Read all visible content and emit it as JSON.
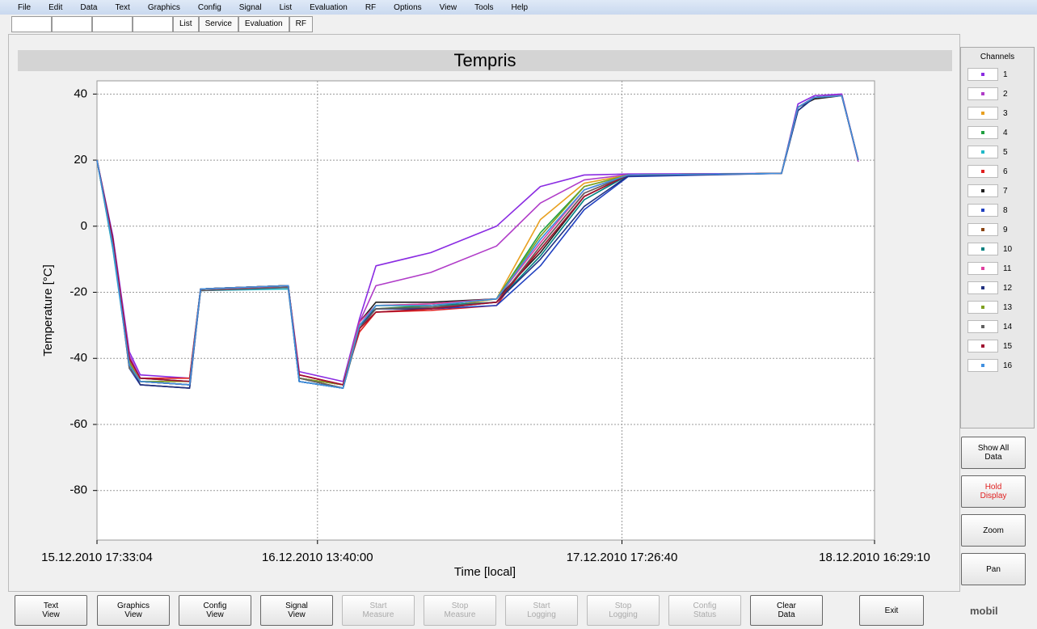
{
  "menu": [
    "File",
    "Edit",
    "Data",
    "Text",
    "Graphics",
    "Config",
    "Signal",
    "List",
    "Evaluation",
    "RF",
    "Options",
    "View",
    "Tools",
    "Help"
  ],
  "tabs": [
    "List",
    "Service",
    "Evaluation",
    "RF"
  ],
  "channels_title": "Channels",
  "side_buttons": [
    {
      "label": "Show All\nData",
      "warn": false
    },
    {
      "label": "Hold\nDisplay",
      "warn": true
    },
    {
      "label": "Zoom",
      "warn": false
    },
    {
      "label": "Pan",
      "warn": false
    }
  ],
  "bottom_buttons": [
    {
      "label": "Text\nView",
      "disabled": false
    },
    {
      "label": "Graphics\nView",
      "disabled": false
    },
    {
      "label": "Config\nView",
      "disabled": false
    },
    {
      "label": "Signal\nView",
      "disabled": false
    },
    {
      "label": "Start\nMeasure",
      "disabled": true
    },
    {
      "label": "Stop\nMeasure",
      "disabled": true
    },
    {
      "label": "Start\nLogging",
      "disabled": true
    },
    {
      "label": "Stop\nLogging",
      "disabled": true
    },
    {
      "label": "Config\nStatus",
      "disabled": true
    },
    {
      "label": "Clear\nData",
      "disabled": false
    },
    {
      "label": "Exit",
      "disabled": false
    }
  ],
  "logo": "mobil",
  "chart_data": {
    "type": "line",
    "title": "Tempris",
    "xlabel": "Time [local]",
    "ylabel": "Temperature [°C]",
    "xlim": [
      "15.12.2010 17:33:04",
      "18.12.2010 16:29:10"
    ],
    "xticks": [
      "15.12.2010 17:33:04",
      "16.12.2010 13:40:00",
      "17.12.2010 17:26:40",
      "18.12.2010 16:29:10"
    ],
    "ylim": [
      -95,
      44
    ],
    "yticks": [
      40,
      20,
      0,
      -20,
      -40,
      -60,
      -80
    ],
    "grid": true,
    "x": [
      "15.12.2010 17:33",
      "15.12.2010 19:00",
      "15.12.2010 20:30",
      "15.12.2010 21:30",
      "16.12.2010 02:00",
      "16.12.2010 03:00",
      "16.12.2010 11:00",
      "16.12.2010 12:00",
      "16.12.2010 16:00",
      "16.12.2010 17:30",
      "16.12.2010 19:00",
      "17.12.2010 00:00",
      "17.12.2010 06:00",
      "17.12.2010 10:00",
      "17.12.2010 14:00",
      "17.12.2010 18:00",
      "18.12.2010 08:00",
      "18.12.2010 09:30",
      "18.12.2010 11:00",
      "18.12.2010 13:30",
      "18.12.2010 15:00"
    ],
    "series": [
      {
        "name": "1",
        "color": "#8a2be2",
        "values": [
          20,
          -3,
          -38,
          -45,
          -46,
          -19,
          -18,
          -44,
          -47,
          -28,
          -12,
          -8,
          0,
          12,
          15.5,
          15.8,
          16,
          37,
          39.5,
          40,
          20
        ]
      },
      {
        "name": "2",
        "color": "#b03cc8",
        "values": [
          20,
          -4,
          -39,
          -46,
          -47,
          -19,
          -18,
          -45,
          -48,
          -29,
          -18,
          -14,
          -6,
          7,
          14,
          15.6,
          16,
          36,
          39,
          39.8,
          19.5
        ]
      },
      {
        "name": "3",
        "color": "#e8a020",
        "values": [
          20,
          -6,
          -41,
          -48,
          -49,
          -19,
          -18,
          -46,
          -49,
          -31,
          -26,
          -25,
          -22,
          2,
          13,
          15.5,
          16,
          36,
          39,
          39.5,
          20
        ]
      },
      {
        "name": "4",
        "color": "#20a040",
        "values": [
          20,
          -5,
          -40,
          -47,
          -48,
          -19,
          -18.5,
          -46,
          -48,
          -30,
          -25,
          -24,
          -22,
          -2,
          12,
          15.5,
          16,
          35,
          39,
          39.5,
          20
        ]
      },
      {
        "name": "5",
        "color": "#20b8c8",
        "values": [
          20,
          -7,
          -42,
          -47,
          -48,
          -19.5,
          -19,
          -47,
          -49,
          -31,
          -24,
          -23.5,
          -22,
          -4,
          11,
          15.5,
          16,
          36,
          39,
          39.5,
          20
        ]
      },
      {
        "name": "6",
        "color": "#e02020",
        "values": [
          20,
          -5,
          -41,
          -46,
          -46,
          -19,
          -18,
          -45,
          -48,
          -32,
          -26,
          -25.5,
          -24,
          -6,
          10,
          15.5,
          16,
          36,
          39,
          39.5,
          20
        ]
      },
      {
        "name": "7",
        "color": "#202020",
        "values": [
          20,
          -6,
          -40,
          -47,
          -48,
          -19,
          -18,
          -46,
          -49,
          -29,
          -23,
          -23,
          -22,
          -8,
          9,
          15.5,
          16,
          36,
          38.5,
          39.5,
          20
        ]
      },
      {
        "name": "8",
        "color": "#2040c0",
        "values": [
          20,
          -4,
          -43,
          -48,
          -49,
          -19.5,
          -18.5,
          -47,
          -49,
          -30,
          -25,
          -25,
          -24,
          -12,
          5,
          15,
          16,
          35,
          39,
          39.5,
          20
        ]
      },
      {
        "name": "9",
        "color": "#8b4513",
        "values": [
          20,
          -5,
          -42,
          -47,
          -48,
          -19,
          -18,
          -46,
          -48,
          -30,
          -25,
          -24.5,
          -23,
          -7,
          9,
          15.5,
          16,
          36,
          39,
          39.5,
          20
        ]
      },
      {
        "name": "10",
        "color": "#008080",
        "values": [
          20,
          -6,
          -41,
          -46,
          -47,
          -19,
          -18,
          -47,
          -49,
          -31,
          -24,
          -24,
          -23,
          -9,
          8,
          15.4,
          16,
          36,
          39,
          39.5,
          20
        ]
      },
      {
        "name": "11",
        "color": "#e040a0",
        "values": [
          20,
          -5,
          -40,
          -47,
          -48,
          -19,
          -18.5,
          -46,
          -48,
          -29,
          -24,
          -23.5,
          -22,
          -5,
          11,
          15.5,
          16,
          36,
          39,
          39.5,
          20
        ]
      },
      {
        "name": "12",
        "color": "#203080",
        "values": [
          20,
          -4,
          -42,
          -48,
          -49,
          -19,
          -18,
          -47,
          -49,
          -30,
          -25,
          -25,
          -23,
          -10,
          6,
          15.2,
          16,
          35,
          39,
          39.5,
          20
        ]
      },
      {
        "name": "13",
        "color": "#80a020",
        "values": [
          20,
          -6,
          -41,
          -47,
          -47,
          -19,
          -18,
          -46,
          -48,
          -30,
          -24,
          -24,
          -22,
          -3,
          12,
          15.5,
          16,
          36,
          39,
          39.5,
          20
        ]
      },
      {
        "name": "14",
        "color": "#606060",
        "values": [
          20,
          -5,
          -43,
          -47,
          -48,
          -19.5,
          -18.5,
          -46,
          -49,
          -31,
          -25,
          -24.5,
          -23,
          -6,
          10,
          15.5,
          16,
          36,
          39,
          39.5,
          20
        ]
      },
      {
        "name": "15",
        "color": "#a01030",
        "values": [
          20,
          -4,
          -40,
          -46,
          -47,
          -19,
          -18,
          -45,
          -48,
          -31,
          -26,
          -25,
          -23,
          -7,
          9,
          15.5,
          16,
          36,
          39,
          39.5,
          20
        ]
      },
      {
        "name": "16",
        "color": "#4090e0",
        "values": [
          20,
          -6,
          -42,
          -47,
          -48,
          -19,
          -18,
          -47,
          -49,
          -30,
          -24,
          -24,
          -22,
          -4,
          11,
          15.5,
          16,
          36,
          39,
          39.5,
          20
        ]
      }
    ]
  }
}
